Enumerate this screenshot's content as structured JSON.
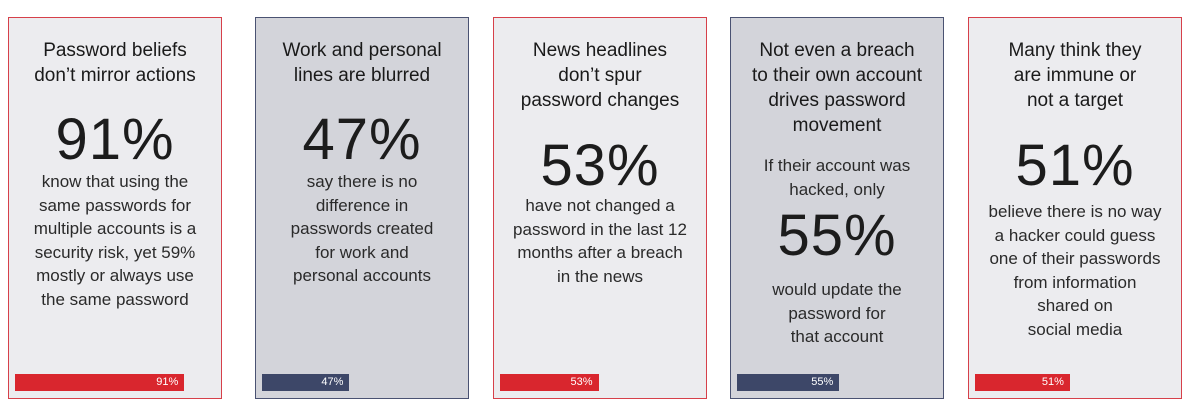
{
  "cards": [
    {
      "title": "Password beliefs\ndon’t mirror actions",
      "stat": "91%",
      "pre_text": "",
      "body": "know that using the\nsame passwords for\nmultiple accounts is a\nsecurity risk, yet 59%\nmostly or always use\nthe same password",
      "bar_percent": 91,
      "bar_label": "91%",
      "bar_color": "#d9262e"
    },
    {
      "title": "Work and personal\nlines are blurred",
      "stat": "47%",
      "pre_text": "",
      "body": "say there is no\ndifference in\npasswords created\nfor work and\npersonal accounts",
      "bar_percent": 47,
      "bar_label": "47%",
      "bar_color": "#3d4768"
    },
    {
      "title": "News headlines\ndon’t spur\npassword changes",
      "stat": "53%",
      "pre_text": "",
      "body": "have not changed a\npassword in the last 12\nmonths after a breach\nin the news",
      "bar_percent": 53,
      "bar_label": "53%",
      "bar_color": "#d9262e"
    },
    {
      "title": "Not even a breach\nto their own account\ndrives password\nmovement",
      "stat": "55%",
      "pre_text": "If their account was\nhacked, only",
      "body": "would update the\npassword for\nthat account",
      "bar_percent": 55,
      "bar_label": "55%",
      "bar_color": "#3d4768"
    },
    {
      "title": "Many think they\nare immune or\nnot a target",
      "stat": "51%",
      "pre_text": "",
      "body": "believe there is no way\na hacker could guess\none of their passwords\nfrom information\nshared on\nsocial media",
      "bar_percent": 51,
      "bar_label": "51%",
      "bar_color": "#d9262e"
    }
  ]
}
